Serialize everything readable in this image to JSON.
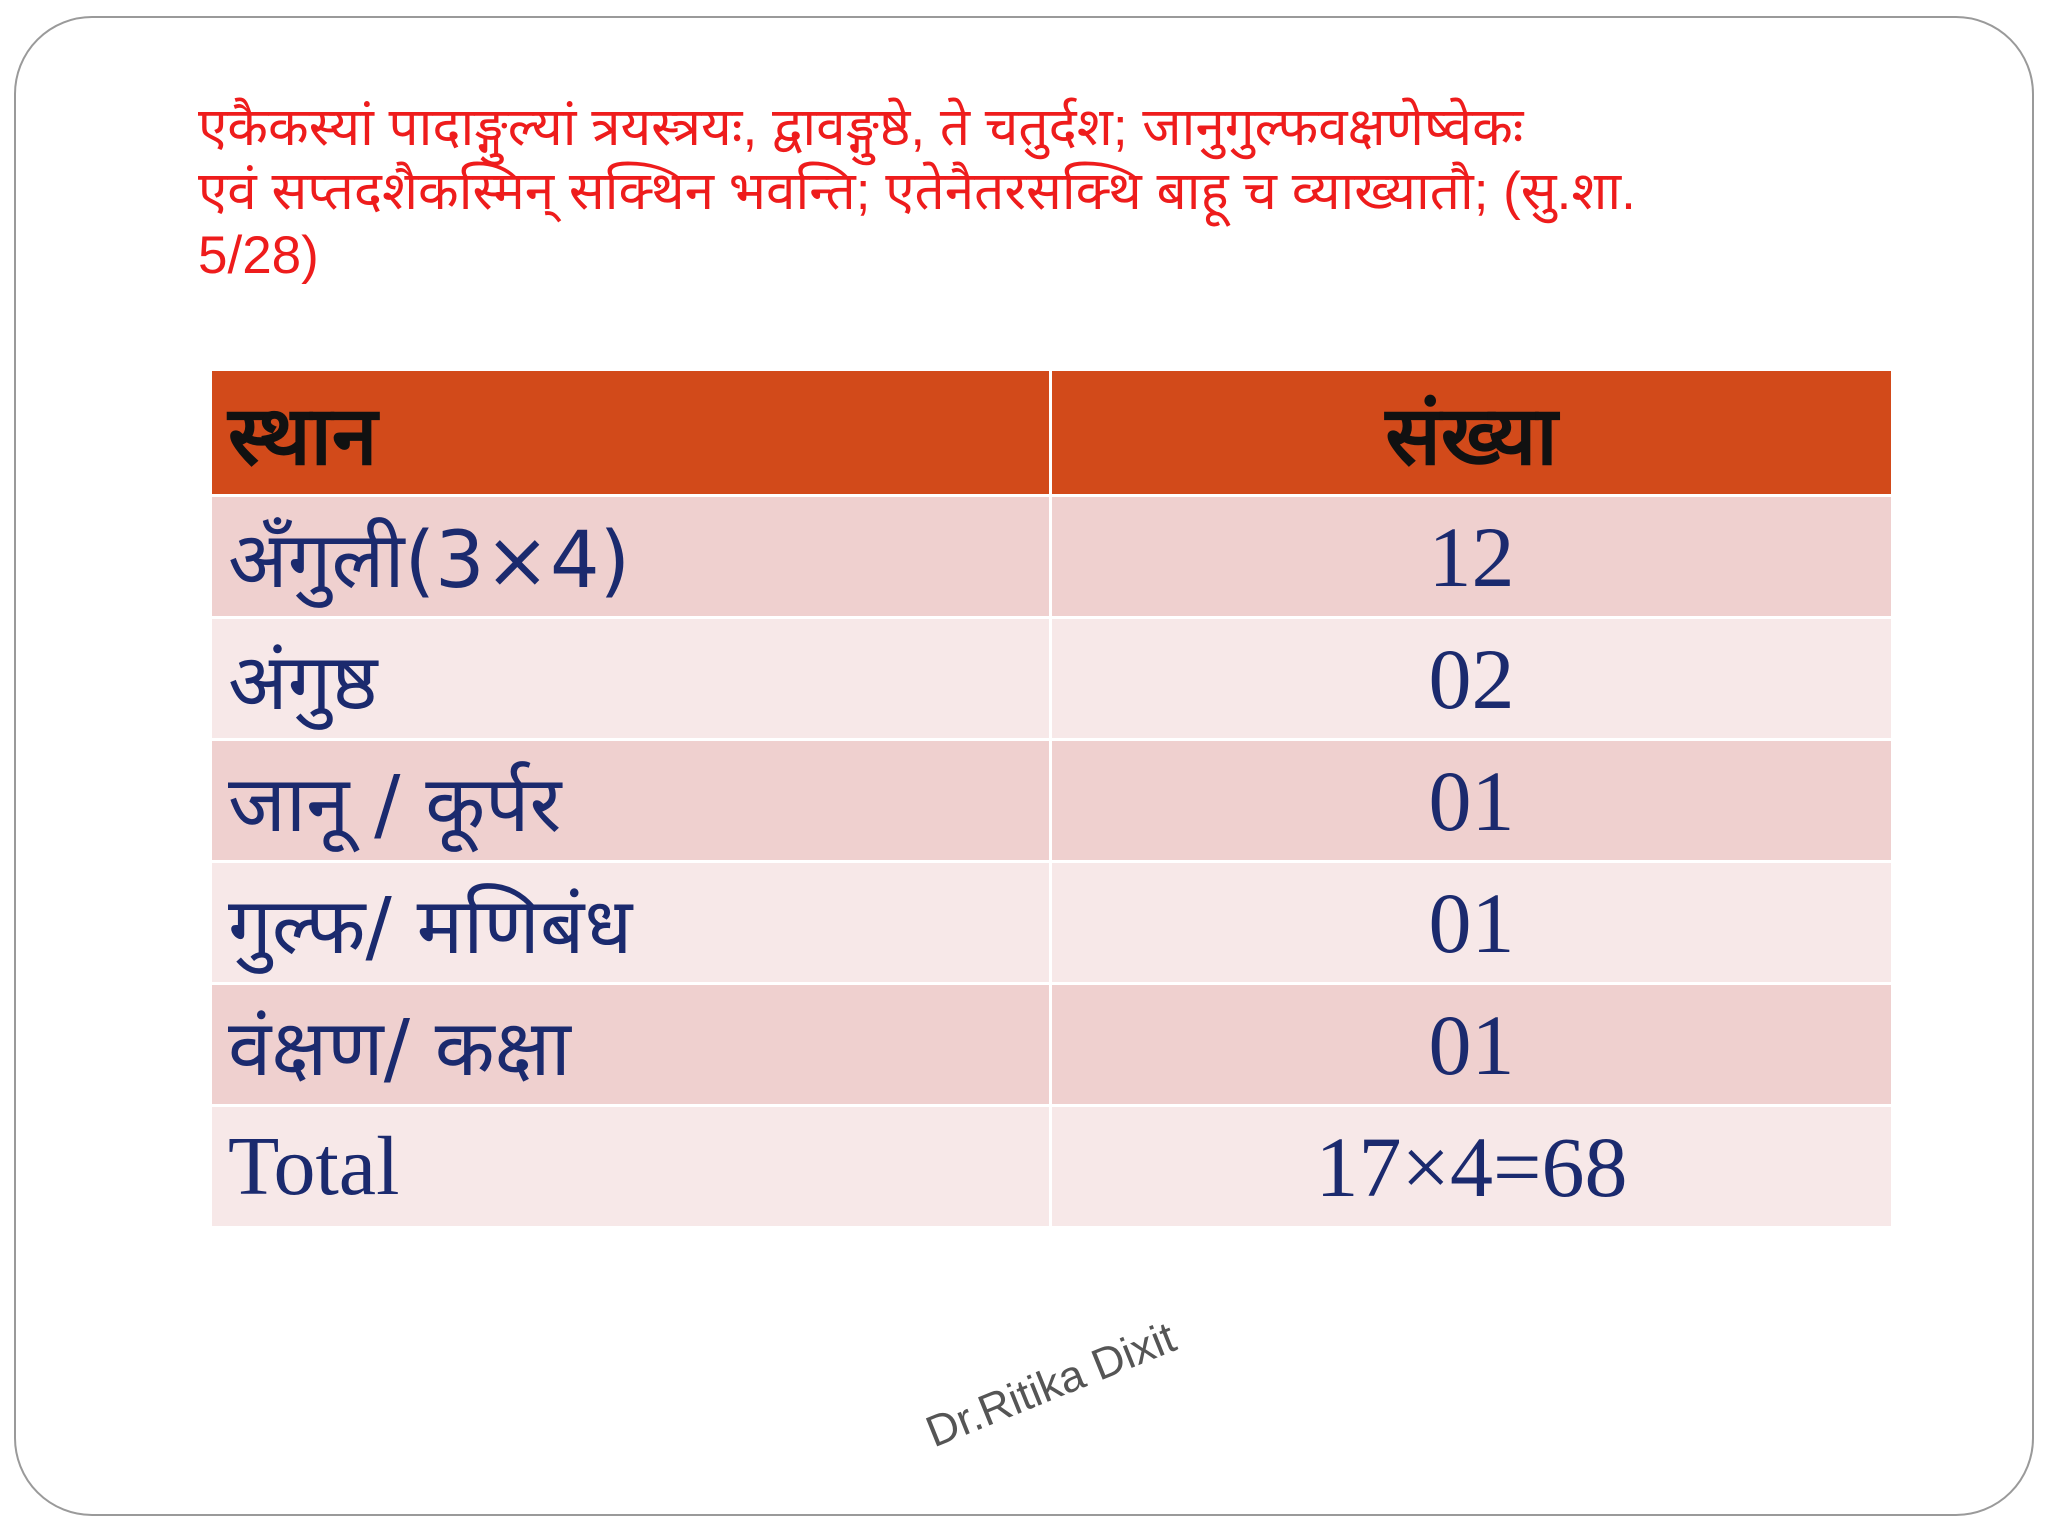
{
  "verse": {
    "line1": "एकैकस्यां पादाङ्गुल्यां त्रयस्त्रयः, द्वावङ्गुष्ठे, ते चतुर्दश; जानुगुल्फवक्षणेष्वेकः",
    "line2": "एवं सप्तदशैकस्मिन् सक्थिन भवन्ति; एतेनैतरसक्थि बाहू च व्याख्यातौ; (सु.शा.",
    "line3": "5/28)"
  },
  "table": {
    "headers": [
      "स्थान",
      "संख्या"
    ],
    "rows": [
      {
        "place": "अँगुली(3×4)",
        "count": "12"
      },
      {
        "place": "अंगुष्ठ",
        "count": "02"
      },
      {
        "place": "जानू / कूर्पर",
        "count": "01"
      },
      {
        "place": "गुल्फ/ मणिबंध",
        "count": "01"
      },
      {
        "place": "वंक्षण/ कक्षा",
        "count": "01"
      },
      {
        "place": "Total",
        "count": "17×4=68"
      }
    ]
  },
  "watermark": "Dr.Ritika Dixit",
  "colors": {
    "verse_text": "#ee1c1c",
    "header_bg": "#d24a1a",
    "row_odd_bg": "#efd0cf",
    "row_even_bg": "#f7e8e8",
    "body_text": "#1b2a6e"
  }
}
